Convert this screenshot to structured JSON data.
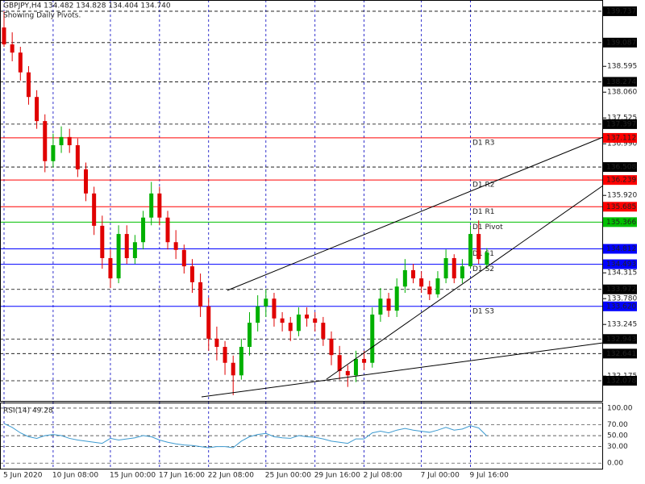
{
  "chart_data": [
    {
      "type": "candlestick",
      "title": "GBPJPY,H4  134.482 134.828 134.404 134.740",
      "subtitle": "Showing Daily Pivots.",
      "categories": [
        "5 Jun 2020",
        null,
        null,
        null,
        null,
        null,
        "10 Jun 08:00",
        null,
        null,
        null,
        null,
        null,
        null,
        "15 Jun 00:00",
        null,
        null,
        null,
        null,
        null,
        "17 Jun 16:00",
        null,
        null,
        null,
        null,
        null,
        "22 Jun 08:00",
        null,
        null,
        null,
        null,
        null,
        null,
        "25 Jun 00:00",
        null,
        null,
        null,
        null,
        null,
        "29 Jun 16:00",
        null,
        null,
        null,
        null,
        null,
        "2 Jul 08:00",
        null,
        null,
        null,
        null,
        null,
        null,
        "7 Jul 00:00",
        null,
        null,
        null,
        null,
        null,
        "9 Jul 16:00",
        null,
        null
      ],
      "open": [
        139.4,
        139.05,
        138.88,
        138.47,
        137.96,
        137.46,
        136.63,
        136.96,
        137.13,
        136.96,
        136.46,
        135.96,
        135.29,
        134.62,
        134.2,
        135.12,
        134.62,
        134.95,
        135.46,
        135.96,
        135.46,
        134.95,
        134.79,
        134.45,
        134.12,
        133.62,
        132.95,
        132.78,
        132.45,
        132.19,
        132.78,
        133.28,
        133.62,
        133.78,
        133.37,
        133.28,
        133.11,
        133.45,
        133.37,
        133.28,
        132.95,
        132.61,
        132.28,
        132.19,
        132.53,
        132.45,
        133.45,
        133.78,
        133.53,
        134.03,
        134.37,
        134.2,
        134.03,
        133.87,
        134.2,
        134.62,
        134.2,
        134.45,
        135.12,
        134.482
      ],
      "high": [
        139.74,
        139.3,
        139.0,
        138.6,
        138.1,
        137.6,
        137.2,
        137.35,
        137.3,
        137.1,
        136.6,
        136.1,
        135.5,
        134.8,
        135.3,
        135.3,
        135.1,
        135.6,
        136.2,
        136.1,
        135.6,
        135.2,
        134.9,
        134.6,
        134.3,
        133.8,
        133.2,
        132.9,
        132.6,
        132.95,
        133.5,
        133.85,
        133.97,
        133.9,
        133.5,
        133.4,
        133.6,
        133.6,
        133.5,
        133.4,
        133.1,
        132.8,
        132.4,
        132.7,
        132.7,
        133.6,
        134.0,
        133.9,
        134.2,
        134.6,
        134.5,
        134.35,
        134.15,
        134.35,
        134.8,
        134.7,
        134.6,
        135.3,
        135.4,
        134.828
      ],
      "low": [
        139.0,
        138.7,
        138.3,
        137.8,
        137.3,
        136.4,
        136.5,
        136.8,
        136.8,
        136.3,
        135.8,
        135.1,
        134.4,
        134.0,
        134.1,
        134.5,
        134.5,
        134.8,
        135.3,
        135.3,
        134.8,
        134.6,
        134.3,
        133.9,
        133.4,
        132.7,
        132.5,
        132.2,
        131.78,
        132.1,
        132.6,
        133.1,
        133.4,
        133.2,
        133.1,
        132.9,
        133.0,
        133.2,
        133.1,
        132.8,
        132.4,
        132.1,
        131.95,
        132.05,
        132.3,
        132.35,
        133.3,
        133.4,
        133.4,
        133.9,
        134.1,
        133.9,
        133.75,
        133.8,
        134.1,
        134.1,
        134.1,
        134.4,
        134.5,
        134.404
      ],
      "close": [
        139.05,
        138.88,
        138.47,
        137.96,
        137.46,
        136.63,
        136.96,
        137.13,
        136.96,
        136.46,
        135.96,
        135.29,
        134.62,
        134.2,
        135.12,
        134.62,
        134.95,
        135.46,
        135.96,
        135.46,
        134.95,
        134.79,
        134.45,
        134.12,
        133.62,
        132.95,
        132.78,
        132.45,
        132.19,
        132.78,
        133.28,
        133.62,
        133.78,
        133.37,
        133.28,
        133.11,
        133.45,
        133.37,
        133.28,
        132.95,
        132.61,
        132.28,
        132.19,
        132.53,
        132.45,
        133.45,
        133.78,
        133.53,
        134.03,
        134.37,
        134.2,
        134.03,
        133.87,
        134.2,
        134.62,
        134.2,
        134.45,
        135.12,
        134.6,
        134.74
      ],
      "up_color": "#00b000",
      "down_color": "#e00000",
      "ylim": [
        131.66,
        139.97
      ],
      "yticks": [
        138.595,
        {
          "value": 138.06,
          "label": "138.060"
        },
        137.525,
        {
          "value": 136.99,
          "label": "136.990"
        },
        {
          "value": 135.92,
          "label": "135.920"
        },
        134.315,
        {
          "value": 133.78,
          "label": "133.780"
        },
        133.245,
        132.175
      ],
      "levels": [
        139.737,
        139.087,
        138.274,
        137.397,
        136.508,
        133.972,
        132.943,
        132.641,
        132.078
      ],
      "pivots": [
        {
          "name": "D1 R3",
          "value": 137.112,
          "color": "#ff0000"
        },
        {
          "name": "D1 R2",
          "value": 136.239,
          "color": "#ff0000"
        },
        {
          "name": "D1 R1",
          "value": 135.685,
          "color": "#ff0000"
        },
        {
          "name": "D1 Pivot",
          "value": 135.366,
          "color": "#00c000"
        },
        {
          "name": "D1 S1",
          "value": 134.812,
          "color": "#0000ff"
        },
        {
          "name": "D1 S2",
          "value": 134.493,
          "color": "#0000ff"
        },
        {
          "name": "D1 S3",
          "value": 133.62,
          "value_label": "133.620",
          "color": "#0000ff"
        }
      ]
    },
    {
      "type": "line",
      "title": "RSI(14) 49.28",
      "color": "#3c9ad0",
      "values": [
        72,
        65,
        55,
        48,
        45,
        50,
        52,
        50,
        45,
        42,
        40,
        38,
        36,
        45,
        42,
        44,
        46,
        50,
        48,
        42,
        38,
        35,
        33,
        32,
        30,
        28,
        30,
        30,
        28,
        40,
        48,
        52,
        54,
        48,
        46,
        45,
        50,
        48,
        47,
        44,
        40,
        38,
        36,
        44,
        44,
        55,
        58,
        55,
        60,
        63,
        60,
        58,
        56,
        60,
        65,
        60,
        62,
        68,
        64,
        49.28
      ],
      "ylim": [
        -10.1,
        108.7
      ],
      "yticks": [
        {
          "value": 100,
          "label": "100.00"
        },
        {
          "value": 70,
          "label": "70.00"
        },
        {
          "value": 50,
          "label": "50.00"
        },
        {
          "value": 30,
          "label": "30.00"
        },
        {
          "value": 0,
          "label": "0.00"
        }
      ]
    }
  ]
}
